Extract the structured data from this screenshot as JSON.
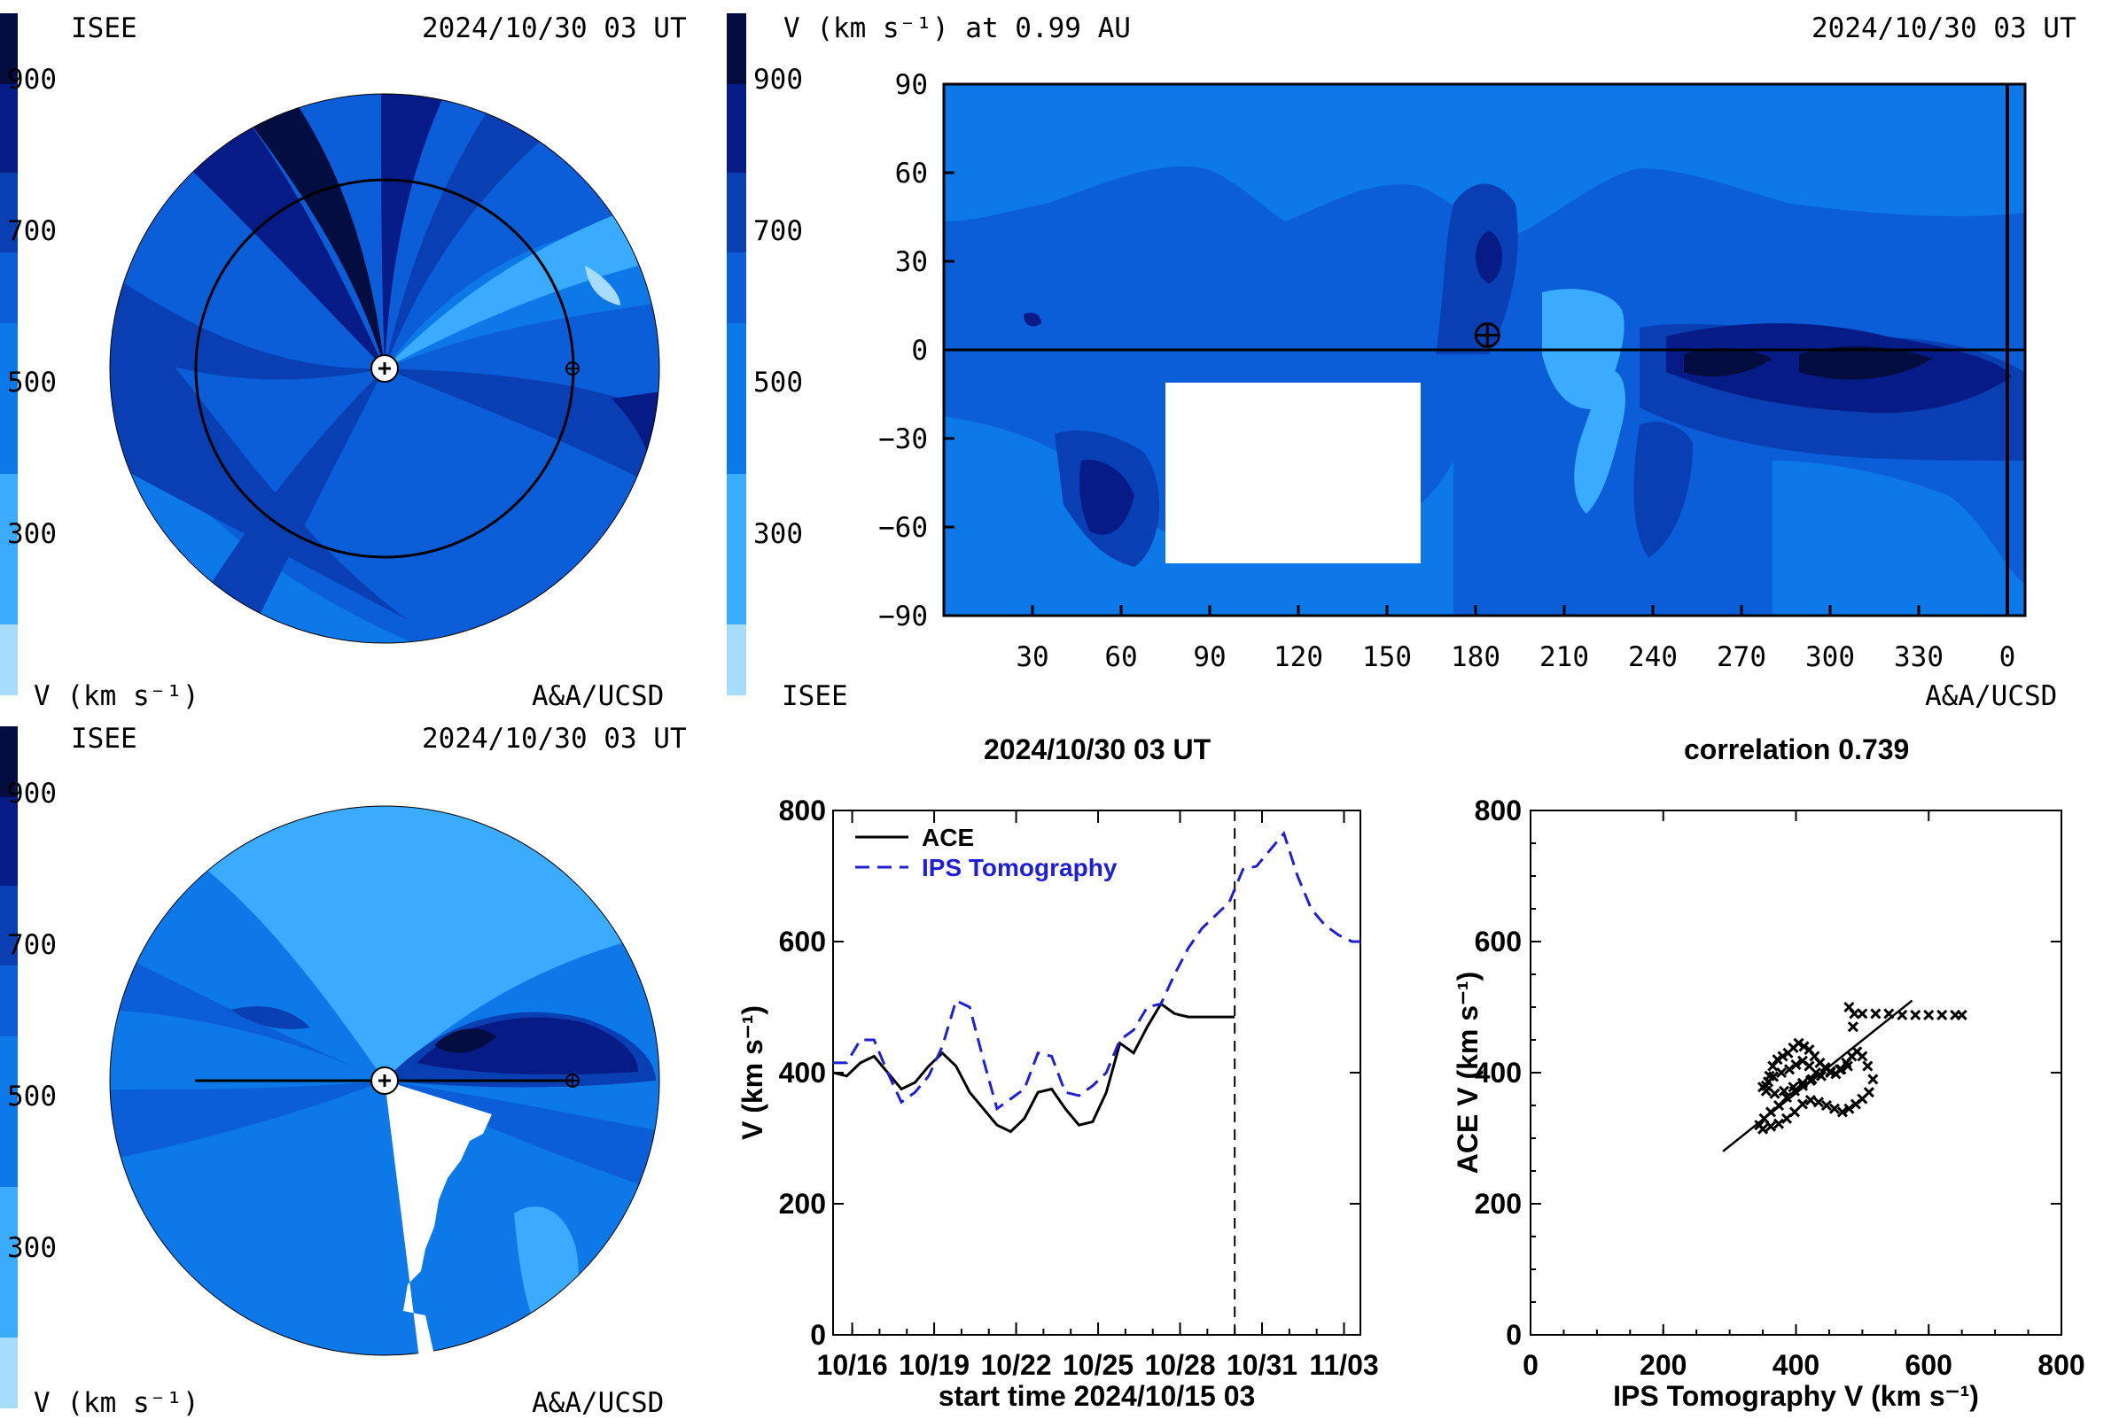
{
  "palette": [
    "#a7dcff",
    "#3aabff",
    "#0d79e8",
    "#0b5ed7",
    "#0a3fb3",
    "#061b85",
    "#030d3f"
  ],
  "colorbar_ticks": [
    "900",
    "700",
    "500",
    "300"
  ],
  "colorbar_unit_label": "V (km s⁻¹)",
  "panel_top_left": {
    "org": "ISEE",
    "timestamp": "2024/10/30 03 UT",
    "credit": "A&A/UCSD",
    "unit": "V (km s⁻¹)"
  },
  "panel_top_right": {
    "title": "V (km s⁻¹) at 0.99 AU",
    "timestamp": "2024/10/30 03 UT",
    "org": "ISEE",
    "credit": "A&A/UCSD"
  },
  "panel_bottom_left": {
    "org": "ISEE",
    "timestamp": "2024/10/30 03 UT",
    "credit": "A&A/UCSD",
    "unit": "V (km s⁻¹)"
  },
  "chart_data": [
    {
      "type": "heatmap",
      "x_ticks": [
        "30",
        "60",
        "90",
        "120",
        "150",
        "180",
        "210",
        "240",
        "270",
        "300",
        "330",
        "0"
      ],
      "y_ticks": [
        "90",
        "60",
        "30",
        "0",
        "−30",
        "−60",
        "−90"
      ],
      "xlim": [
        0,
        360
      ],
      "ylim": [
        -90,
        90
      ],
      "earth_marker": {
        "carrington_longitude": 184,
        "latitude": 5
      },
      "colorbar": {
        "ticks": [
          300,
          500,
          700,
          900
        ],
        "unit": "V (km s⁻¹)"
      }
    },
    {
      "type": "line",
      "title": "2024/10/30 03 UT",
      "xlabel": "start time 2024/10/15 03",
      "ylabel": "V (km s⁻¹)",
      "x_ticks": [
        "10/16",
        "10/19",
        "10/22",
        "10/25",
        "10/28",
        "10/31",
        "11/03"
      ],
      "x_tick_days": [
        1,
        4,
        7,
        10,
        13,
        16,
        19
      ],
      "y_ticks": [
        "800",
        "600",
        "400",
        "200",
        "0"
      ],
      "xlim": [
        0.3,
        19.6
      ],
      "ylim": [
        0,
        800
      ],
      "current_time_day": 15,
      "legend": [
        "ACE",
        "IPS Tomography"
      ],
      "series": [
        {
          "name": "ACE",
          "style": "solid",
          "color": "#000000",
          "x": [
            0.3,
            0.8,
            1.3,
            1.8,
            2.3,
            2.8,
            3.3,
            3.8,
            4.3,
            4.8,
            5.3,
            5.8,
            6.3,
            6.8,
            7.3,
            7.8,
            8.3,
            8.8,
            9.3,
            9.8,
            10.3,
            10.8,
            11.3,
            11.8,
            12.3,
            12.8,
            13.3,
            13.8,
            14.3,
            15.0
          ],
          "y": [
            400,
            395,
            415,
            425,
            400,
            375,
            385,
            410,
            430,
            410,
            370,
            345,
            320,
            310,
            330,
            370,
            375,
            345,
            320,
            325,
            370,
            445,
            430,
            470,
            505,
            490,
            485,
            485,
            485,
            485
          ]
        },
        {
          "name": "IPS Tomography",
          "style": "dashed",
          "color": "#1f1fd6",
          "x": [
            0.3,
            0.8,
            1.3,
            1.8,
            2.3,
            2.8,
            3.3,
            3.8,
            4.3,
            4.8,
            5.3,
            5.8,
            6.3,
            6.8,
            7.3,
            7.8,
            8.3,
            8.8,
            9.3,
            9.8,
            10.3,
            10.8,
            11.3,
            11.8,
            12.3,
            12.8,
            13.3,
            13.8,
            14.3,
            14.8,
            15.3,
            15.8,
            16.3,
            16.8,
            17.3,
            17.8,
            18.3,
            18.8,
            19.3,
            19.6
          ],
          "y": [
            415,
            415,
            450,
            450,
            400,
            355,
            370,
            395,
            440,
            510,
            500,
            420,
            345,
            360,
            375,
            430,
            425,
            370,
            365,
            380,
            400,
            450,
            465,
            500,
            505,
            550,
            590,
            620,
            640,
            660,
            710,
            715,
            740,
            765,
            700,
            650,
            625,
            610,
            600,
            600
          ]
        }
      ]
    },
    {
      "type": "scatter",
      "title": "correlation 0.739",
      "xlabel": "IPS Tomography V (km s⁻¹)",
      "ylabel": "ACE V (km s⁻¹)",
      "x_ticks": [
        "0",
        "200",
        "400",
        "600",
        "800"
      ],
      "y_ticks": [
        "800",
        "600",
        "400",
        "200",
        "0"
      ],
      "xlim": [
        0,
        800
      ],
      "ylim": [
        0,
        800
      ],
      "fit_line": {
        "x": [
          290,
          575
        ],
        "y": [
          280,
          510
        ]
      },
      "x": [
        355,
        360,
        365,
        372,
        380,
        388,
        396,
        404,
        412,
        420,
        428,
        436,
        444,
        452,
        460,
        468,
        476,
        484,
        492,
        500,
        508,
        516,
        510,
        500,
        490,
        480,
        470,
        458,
        446,
        434,
        422,
        410,
        398,
        386,
        374,
        362,
        350,
        345,
        352,
        362,
        374,
        386,
        398,
        410,
        422,
        430,
        420,
        410,
        400,
        390,
        378,
        366,
        358,
        350,
        355,
        368,
        382,
        396,
        410,
        424,
        438,
        452,
        466,
        478,
        486,
        480,
        488,
        500,
        520,
        540,
        560,
        580,
        600,
        620,
        640,
        650
      ],
      "y": [
        380,
        395,
        410,
        420,
        425,
        430,
        438,
        445,
        440,
        435,
        425,
        415,
        408,
        402,
        398,
        405,
        415,
        425,
        432,
        425,
        410,
        390,
        370,
        360,
        352,
        345,
        340,
        345,
        350,
        355,
        358,
        352,
        340,
        330,
        322,
        318,
        314,
        320,
        330,
        340,
        350,
        362,
        372,
        380,
        388,
        400,
        410,
        418,
        412,
        405,
        400,
        394,
        386,
        378,
        372,
        368,
        372,
        378,
        384,
        390,
        395,
        400,
        405,
        410,
        470,
        500,
        490,
        490,
        490,
        490,
        488,
        488,
        488,
        488,
        488,
        488
      ]
    }
  ]
}
